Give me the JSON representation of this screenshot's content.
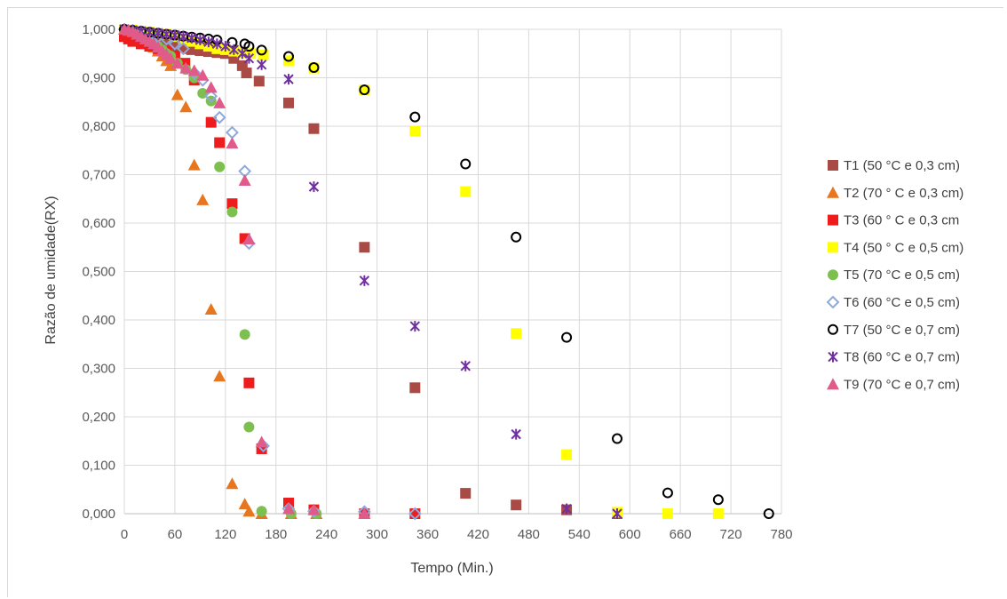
{
  "chart_data": {
    "type": "scatter",
    "xlabel": "Tempo (Min.)",
    "ylabel": "Razão de umidade(RX)",
    "xlim": [
      0,
      780
    ],
    "ylim": [
      0,
      1
    ],
    "x_ticks": [
      "0",
      "60",
      "120",
      "180",
      "240",
      "300",
      "360",
      "420",
      "480",
      "540",
      "600",
      "660",
      "720",
      "780"
    ],
    "y_ticks": [
      "0,000",
      "0,100",
      "0,200",
      "0,300",
      "0,400",
      "0,500",
      "0,600",
      "0,700",
      "0,800",
      "0,900",
      "1,000"
    ],
    "grid": "horizontal and vertical",
    "legend_position": "right",
    "series": [
      {
        "name": "T1 (50 °C e 0,3 cm)",
        "marker": "square",
        "color": "#a94a45",
        "points": [
          [
            0,
            1
          ],
          [
            5,
            0.998
          ],
          [
            10,
            0.995
          ],
          [
            15,
            0.99
          ],
          [
            20,
            0.987
          ],
          [
            25,
            0.985
          ],
          [
            30,
            0.983
          ],
          [
            35,
            0.98
          ],
          [
            40,
            0.978
          ],
          [
            45,
            0.976
          ],
          [
            50,
            0.973
          ],
          [
            55,
            0.97
          ],
          [
            60,
            0.967
          ],
          [
            65,
            0.965
          ],
          [
            70,
            0.963
          ],
          [
            75,
            0.96
          ],
          [
            80,
            0.958
          ],
          [
            90,
            0.956
          ],
          [
            100,
            0.954
          ],
          [
            110,
            0.952
          ],
          [
            120,
            0.95
          ],
          [
            130,
            0.94
          ],
          [
            140,
            0.925
          ],
          [
            145,
            0.91
          ],
          [
            160,
            0.893
          ],
          [
            195,
            0.848
          ],
          [
            225,
            0.795
          ],
          [
            285,
            0.55
          ],
          [
            345,
            0.26
          ],
          [
            405,
            0.042
          ],
          [
            465,
            0.018
          ],
          [
            525,
            0.008
          ],
          [
            585,
            0.0
          ]
        ]
      },
      {
        "name": "T2 (70 ° C e 0,3 cm)",
        "marker": "triangle",
        "color": "#e8761f",
        "points": [
          [
            0,
            1
          ],
          [
            5,
            0.995
          ],
          [
            10,
            0.99
          ],
          [
            15,
            0.985
          ],
          [
            20,
            0.98
          ],
          [
            25,
            0.975
          ],
          [
            30,
            0.97
          ],
          [
            35,
            0.963
          ],
          [
            40,
            0.955
          ],
          [
            45,
            0.945
          ],
          [
            50,
            0.935
          ],
          [
            55,
            0.925
          ],
          [
            63,
            0.865
          ],
          [
            73,
            0.84
          ],
          [
            83,
            0.72
          ],
          [
            93,
            0.648
          ],
          [
            103,
            0.422
          ],
          [
            113,
            0.284
          ],
          [
            128,
            0.062
          ],
          [
            143,
            0.02
          ],
          [
            148,
            0.005
          ],
          [
            163,
            0.0
          ],
          [
            198,
            0.0
          ],
          [
            228,
            0.0
          ]
        ]
      },
      {
        "name": "T3 (60 ° C e 0,3 cm",
        "marker": "square",
        "color": "#ee1c1c",
        "points": [
          [
            0,
            0.985
          ],
          [
            5,
            0.98
          ],
          [
            10,
            0.975
          ],
          [
            20,
            0.97
          ],
          [
            30,
            0.965
          ],
          [
            40,
            0.96
          ],
          [
            50,
            0.955
          ],
          [
            60,
            0.945
          ],
          [
            72,
            0.93
          ],
          [
            83,
            0.895
          ],
          [
            103,
            0.808
          ],
          [
            113,
            0.766
          ],
          [
            128,
            0.64
          ],
          [
            143,
            0.568
          ],
          [
            148,
            0.27
          ],
          [
            163,
            0.134
          ],
          [
            195,
            0.022
          ],
          [
            225,
            0.008
          ],
          [
            285,
            0.0
          ],
          [
            345,
            0.0
          ]
        ]
      },
      {
        "name": "T4 (50 ° C e 0,5 cm)",
        "marker": "square",
        "color": "#ffff00",
        "points": [
          [
            0,
            1
          ],
          [
            10,
            0.998
          ],
          [
            20,
            0.996
          ],
          [
            30,
            0.994
          ],
          [
            40,
            0.992
          ],
          [
            50,
            0.99
          ],
          [
            60,
            0.985
          ],
          [
            70,
            0.98
          ],
          [
            80,
            0.975
          ],
          [
            90,
            0.97
          ],
          [
            100,
            0.965
          ],
          [
            110,
            0.96
          ],
          [
            120,
            0.958
          ],
          [
            130,
            0.955
          ],
          [
            140,
            0.952
          ],
          [
            150,
            0.95
          ],
          [
            165,
            0.947
          ],
          [
            195,
            0.935
          ],
          [
            225,
            0.92
          ],
          [
            285,
            0.875
          ],
          [
            345,
            0.79
          ],
          [
            405,
            0.665
          ],
          [
            465,
            0.372
          ],
          [
            525,
            0.122
          ],
          [
            585,
            0.003
          ],
          [
            645,
            0.0
          ],
          [
            705,
            0.0
          ]
        ]
      },
      {
        "name": "T5 (70 °C e 0,5 cm)",
        "marker": "circle",
        "color": "#7dc050",
        "points": [
          [
            0,
            1
          ],
          [
            5,
            0.998
          ],
          [
            10,
            0.995
          ],
          [
            15,
            0.99
          ],
          [
            20,
            0.985
          ],
          [
            25,
            0.98
          ],
          [
            30,
            0.975
          ],
          [
            35,
            0.97
          ],
          [
            40,
            0.965
          ],
          [
            45,
            0.958
          ],
          [
            50,
            0.95
          ],
          [
            55,
            0.945
          ],
          [
            63,
            0.93
          ],
          [
            73,
            0.917
          ],
          [
            83,
            0.9
          ],
          [
            93,
            0.868
          ],
          [
            103,
            0.852
          ],
          [
            113,
            0.716
          ],
          [
            128,
            0.623
          ],
          [
            143,
            0.37
          ],
          [
            148,
            0.179
          ],
          [
            163,
            0.005
          ],
          [
            198,
            0.0
          ],
          [
            228,
            0.0
          ]
        ]
      },
      {
        "name": "T6 (60 °C e 0,5 cm)",
        "marker": "diamond",
        "color": "#8ea9db",
        "points": [
          [
            0,
            1
          ],
          [
            10,
            0.998
          ],
          [
            20,
            0.995
          ],
          [
            30,
            0.99
          ],
          [
            40,
            0.985
          ],
          [
            50,
            0.98
          ],
          [
            60,
            0.97
          ],
          [
            70,
            0.96
          ],
          [
            83,
            0.91
          ],
          [
            93,
            0.895
          ],
          [
            103,
            0.862
          ],
          [
            113,
            0.818
          ],
          [
            128,
            0.787
          ],
          [
            143,
            0.707
          ],
          [
            148,
            0.558
          ],
          [
            165,
            0.14
          ],
          [
            195,
            0.01
          ],
          [
            225,
            0.005
          ],
          [
            285,
            0.004
          ],
          [
            345,
            0.0
          ]
        ]
      },
      {
        "name": "T7 (50 °C e 0,7 cm)",
        "marker": "circle-open",
        "color": "#000000",
        "points": [
          [
            0,
            1
          ],
          [
            10,
            0.998
          ],
          [
            20,
            0.996
          ],
          [
            30,
            0.994
          ],
          [
            40,
            0.992
          ],
          [
            50,
            0.99
          ],
          [
            60,
            0.988
          ],
          [
            70,
            0.986
          ],
          [
            80,
            0.984
          ],
          [
            90,
            0.982
          ],
          [
            100,
            0.98
          ],
          [
            110,
            0.978
          ],
          [
            128,
            0.973
          ],
          [
            143,
            0.97
          ],
          [
            148,
            0.965
          ],
          [
            163,
            0.957
          ],
          [
            195,
            0.944
          ],
          [
            225,
            0.921
          ],
          [
            285,
            0.875
          ],
          [
            345,
            0.819
          ],
          [
            405,
            0.722
          ],
          [
            465,
            0.571
          ],
          [
            525,
            0.364
          ],
          [
            585,
            0.155
          ],
          [
            645,
            0.043
          ],
          [
            705,
            0.029
          ],
          [
            765,
            0.0
          ]
        ]
      },
      {
        "name": "T8 (60 °C e 0,7 cm)",
        "marker": "star",
        "color": "#7030a0",
        "points": [
          [
            0,
            1
          ],
          [
            10,
            0.998
          ],
          [
            20,
            0.996
          ],
          [
            30,
            0.994
          ],
          [
            40,
            0.992
          ],
          [
            50,
            0.99
          ],
          [
            60,
            0.988
          ],
          [
            70,
            0.985
          ],
          [
            80,
            0.982
          ],
          [
            90,
            0.978
          ],
          [
            100,
            0.974
          ],
          [
            110,
            0.97
          ],
          [
            120,
            0.965
          ],
          [
            130,
            0.958
          ],
          [
            140,
            0.95
          ],
          [
            148,
            0.94
          ],
          [
            163,
            0.927
          ],
          [
            195,
            0.897
          ],
          [
            225,
            0.675
          ],
          [
            285,
            0.481
          ],
          [
            345,
            0.387
          ],
          [
            405,
            0.305
          ],
          [
            465,
            0.164
          ],
          [
            525,
            0.01
          ],
          [
            585,
            0.0
          ]
        ]
      },
      {
        "name": "T9 (70 °C e 0,7 cm)",
        "marker": "triangle",
        "color": "#e05a8a",
        "points": [
          [
            0,
            1
          ],
          [
            5,
            0.998
          ],
          [
            10,
            0.995
          ],
          [
            15,
            0.99
          ],
          [
            20,
            0.985
          ],
          [
            25,
            0.98
          ],
          [
            30,
            0.975
          ],
          [
            35,
            0.97
          ],
          [
            40,
            0.963
          ],
          [
            45,
            0.955
          ],
          [
            50,
            0.948
          ],
          [
            55,
            0.94
          ],
          [
            63,
            0.93
          ],
          [
            73,
            0.92
          ],
          [
            83,
            0.915
          ],
          [
            93,
            0.905
          ],
          [
            103,
            0.88
          ],
          [
            113,
            0.848
          ],
          [
            128,
            0.765
          ],
          [
            143,
            0.688
          ],
          [
            148,
            0.567
          ],
          [
            163,
            0.148
          ],
          [
            195,
            0.01
          ],
          [
            225,
            0.008
          ],
          [
            285,
            0.0
          ]
        ]
      }
    ]
  }
}
